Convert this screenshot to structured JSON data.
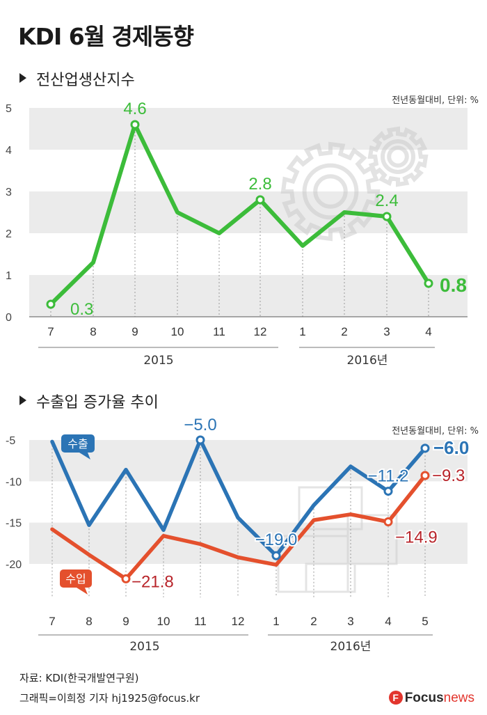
{
  "title": "KDI 6월 경제동향",
  "section1": {
    "heading": "전산업생산지수",
    "unit": "전년동월대비, 단위: %"
  },
  "section2": {
    "heading": "수출입 증가율 추이",
    "unit": "전년동월대비, 단위: %"
  },
  "footer": {
    "source": "자료: KDI(한국개발연구원)",
    "credit": "그래픽=이희정 기자 hj1925@focus.kr"
  },
  "logo": {
    "mark": "F",
    "brand": "Focus",
    "suffix": "news"
  },
  "colors": {
    "green": "#3cbc3a",
    "blue": "#2b74b5",
    "red": "#e4502d",
    "band": "#ebebeb",
    "darkred": "#b8242a"
  },
  "chart_data": [
    {
      "type": "line",
      "title": "전산업생산지수",
      "categories": [
        "7",
        "8",
        "9",
        "10",
        "11",
        "12",
        "1",
        "2",
        "3",
        "4"
      ],
      "year_labels": [
        "2015",
        "2016년"
      ],
      "series": [
        {
          "values": [
            0.3,
            1.3,
            4.6,
            2.5,
            2.0,
            2.8,
            1.7,
            2.5,
            2.4,
            0.8
          ],
          "data_labels": [
            "0.3",
            "",
            "4.6",
            "",
            "",
            "2.8",
            "",
            "",
            "2.4",
            "0.8"
          ]
        }
      ],
      "yticks": [
        "0",
        "1",
        "2",
        "3",
        "4",
        "5"
      ],
      "ylim": [
        0,
        5
      ]
    },
    {
      "type": "line",
      "title": "수출입 증가율 추이",
      "categories": [
        "7",
        "8",
        "9",
        "10",
        "11",
        "12",
        "1",
        "2",
        "3",
        "4",
        "5"
      ],
      "year_labels": [
        "2015",
        "2016년"
      ],
      "series": [
        {
          "name": "수출",
          "values": [
            -5.2,
            -15.3,
            -8.6,
            -15.9,
            -5.0,
            -14.4,
            -19.0,
            -12.9,
            -8.2,
            -11.2,
            -6.0
          ],
          "data_labels": [
            "",
            "",
            "",
            "",
            "-5.0",
            "",
            "-19.0",
            "",
            "",
            "-11.2",
            "-6.0"
          ]
        },
        {
          "name": "수입",
          "values": [
            -15.8,
            -18.9,
            -21.8,
            -16.6,
            -17.6,
            -19.2,
            -20.1,
            -14.7,
            -14.0,
            -14.9,
            -9.3
          ],
          "data_labels": [
            "",
            "",
            "-21.8",
            "",
            "",
            "",
            "",
            "",
            "",
            "-14.9",
            "-9.3"
          ]
        }
      ],
      "yticks": [
        "-5",
        "-10",
        "-15",
        "-20"
      ],
      "ylim": [
        -23,
        -4
      ]
    }
  ]
}
